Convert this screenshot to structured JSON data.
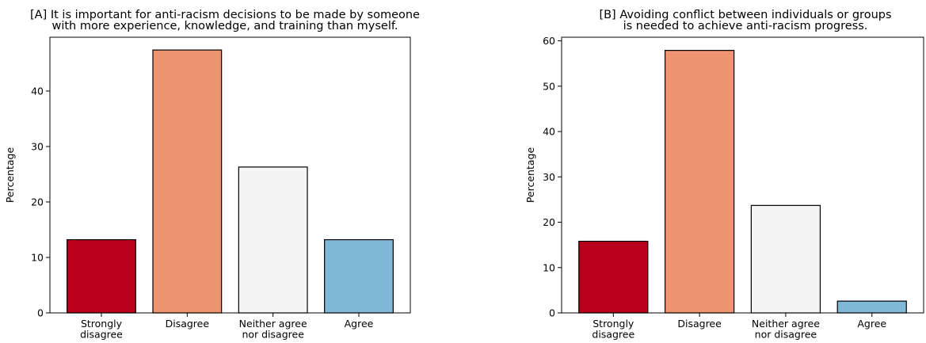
{
  "chart_data": [
    {
      "type": "bar",
      "title_lines": [
        "[A] It is important for anti-racism decisions to be made by someone",
        "with more experience, knowledge, and training than myself."
      ],
      "categories": [
        [
          "Strongly",
          "disagree"
        ],
        [
          "Disagree"
        ],
        [
          "Neither agree",
          "nor disagree"
        ],
        [
          "Agree"
        ]
      ],
      "values": [
        13.2,
        47.4,
        26.3,
        13.2
      ],
      "colors": [
        "#b8001c",
        "#ef9470",
        "#f4f4f4",
        "#80b8d8"
      ],
      "ylabel": "Percentage",
      "yticks": [
        0,
        10,
        20,
        30,
        40
      ],
      "ylim": [
        0,
        49.7
      ],
      "grid": false
    },
    {
      "type": "bar",
      "title_lines": [
        "[B] Avoiding conflict between individuals or groups",
        "is needed to achieve anti-racism progress."
      ],
      "categories": [
        [
          "Strongly",
          "disagree"
        ],
        [
          "Disagree"
        ],
        [
          "Neither agree",
          "nor disagree"
        ],
        [
          "Agree"
        ]
      ],
      "values": [
        15.8,
        57.9,
        23.7,
        2.6
      ],
      "colors": [
        "#b8001c",
        "#ef9470",
        "#f4f4f4",
        "#80b8d8"
      ],
      "ylabel": "Percentage",
      "yticks": [
        0,
        10,
        20,
        30,
        40,
        50,
        60
      ],
      "ylim": [
        0,
        60.8
      ],
      "grid": false
    }
  ]
}
